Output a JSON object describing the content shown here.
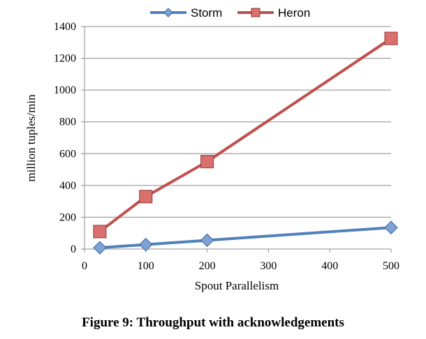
{
  "chart_data": {
    "type": "line",
    "x": [
      25,
      100,
      200,
      500
    ],
    "x_ticks": [
      "0",
      "100",
      "200",
      "300",
      "400",
      "500"
    ],
    "y_ticks": [
      "0",
      "200",
      "400",
      "600",
      "800",
      "1000",
      "1200",
      "1400"
    ],
    "xlim": [
      0,
      500
    ],
    "ylim": [
      0,
      1400
    ],
    "xlabel": "Spout Parallelism",
    "ylabel": "million tuples/min",
    "grid": "horizontal",
    "legend_position": "top",
    "series": [
      {
        "name": "Storm",
        "values": [
          8,
          28,
          55,
          135
        ],
        "color": "#4f81bd",
        "marker": "diamond"
      },
      {
        "name": "Heron",
        "values": [
          110,
          330,
          550,
          1325
        ],
        "color": "#c0504d",
        "marker": "square"
      }
    ]
  },
  "caption": "Figure 9: Throughput with acknowledgements"
}
